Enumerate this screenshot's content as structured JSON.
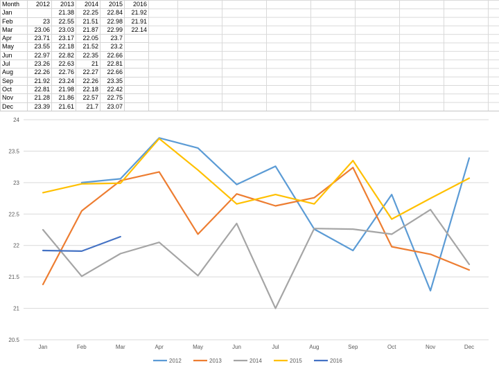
{
  "sheet": {
    "headers": [
      "Month",
      "2012",
      "2013",
      "2014",
      "2015",
      "2016"
    ],
    "rows": [
      [
        "Jan",
        "",
        "21.38",
        "22.25",
        "22.84",
        "21.92"
      ],
      [
        "Feb",
        "23",
        "22.55",
        "21.51",
        "22.98",
        "21.91"
      ],
      [
        "Mar",
        "23.06",
        "23.03",
        "21.87",
        "22.99",
        "22.14"
      ],
      [
        "Apr",
        "23.71",
        "23.17",
        "22.05",
        "23.7",
        ""
      ],
      [
        "May",
        "23.55",
        "22.18",
        "21.52",
        "23.2",
        ""
      ],
      [
        "Jun",
        "22.97",
        "22.82",
        "22.35",
        "22.66",
        ""
      ],
      [
        "Jul",
        "23.26",
        "22.63",
        "21",
        "22.81",
        ""
      ],
      [
        "Aug",
        "22.26",
        "22.76",
        "22.27",
        "22.66",
        ""
      ],
      [
        "Sep",
        "21.92",
        "23.24",
        "22.26",
        "23.35",
        ""
      ],
      [
        "Oct",
        "22.81",
        "21.98",
        "22.18",
        "22.42",
        ""
      ],
      [
        "Nov",
        "21.28",
        "21.86",
        "22.57",
        "22.75",
        ""
      ],
      [
        "Dec",
        "23.39",
        "21.61",
        "21.7",
        "23.07",
        ""
      ]
    ]
  },
  "chart_data": {
    "type": "line",
    "title": "",
    "xlabel": "",
    "ylabel": "",
    "categories": [
      "Jan",
      "Feb",
      "Mar",
      "Apr",
      "May",
      "Jun",
      "Jul",
      "Aug",
      "Sep",
      "Oct",
      "Nov",
      "Dec"
    ],
    "ylim": [
      20.5,
      24
    ],
    "yticks": [
      20.5,
      21,
      21.5,
      22,
      22.5,
      23,
      23.5,
      24
    ],
    "grid": true,
    "legend_position": "bottom",
    "series": [
      {
        "name": "2012",
        "color": "#5B9BD5",
        "values": [
          null,
          23,
          23.06,
          23.71,
          23.55,
          22.97,
          23.26,
          22.26,
          21.92,
          22.81,
          21.28,
          23.39
        ]
      },
      {
        "name": "2013",
        "color": "#ED7D31",
        "values": [
          21.38,
          22.55,
          23.03,
          23.17,
          22.18,
          22.82,
          22.63,
          22.76,
          23.24,
          21.98,
          21.86,
          21.61
        ]
      },
      {
        "name": "2014",
        "color": "#A5A5A5",
        "values": [
          22.25,
          21.51,
          21.87,
          22.05,
          21.52,
          22.35,
          21,
          22.27,
          22.26,
          22.18,
          22.57,
          21.7
        ]
      },
      {
        "name": "2015",
        "color": "#FFC000",
        "values": [
          22.84,
          22.98,
          22.99,
          23.7,
          23.2,
          22.66,
          22.81,
          22.66,
          23.35,
          22.42,
          22.75,
          23.07
        ]
      },
      {
        "name": "2016",
        "color": "#4472C4",
        "values": [
          21.92,
          21.91,
          22.14,
          null,
          null,
          null,
          null,
          null,
          null,
          null,
          null,
          null
        ]
      }
    ]
  }
}
